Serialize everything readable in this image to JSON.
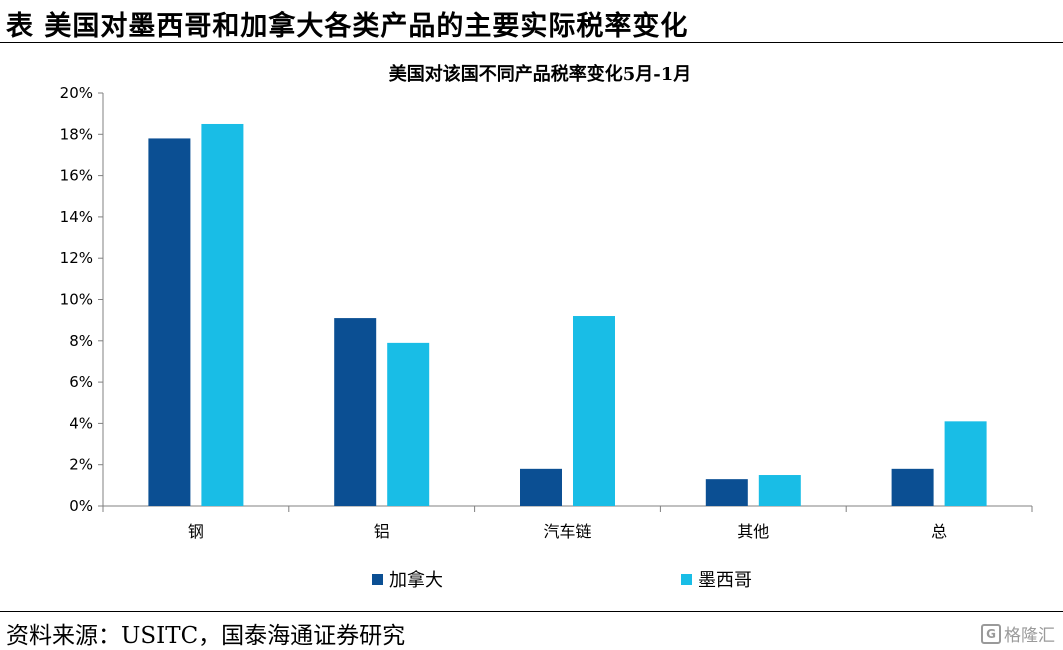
{
  "header": {
    "title": "表  美国对墨西哥和加拿大各类产品的主要实际税率变化"
  },
  "footer": {
    "source": "资料来源：USITC，国泰海通证券研究",
    "watermark": "格隆汇"
  },
  "chart_data": {
    "type": "bar",
    "title": "美国对该国不同产品税率变化5月-1月",
    "categories": [
      "钢",
      "铝",
      "汽车链",
      "其他",
      "总"
    ],
    "series": [
      {
        "name": "加拿大",
        "color": "#0B4F93",
        "values": [
          17.8,
          9.1,
          1.8,
          1.3,
          1.8
        ]
      },
      {
        "name": "墨西哥",
        "color": "#19BDE6",
        "values": [
          18.5,
          7.9,
          9.2,
          1.5,
          4.1
        ]
      }
    ],
    "yticks": [
      "0%",
      "2%",
      "4%",
      "6%",
      "8%",
      "10%",
      "12%",
      "14%",
      "16%",
      "18%",
      "20%"
    ],
    "ylim": [
      0,
      20
    ],
    "xlabel": "",
    "ylabel": "",
    "legend_position": "bottom"
  }
}
